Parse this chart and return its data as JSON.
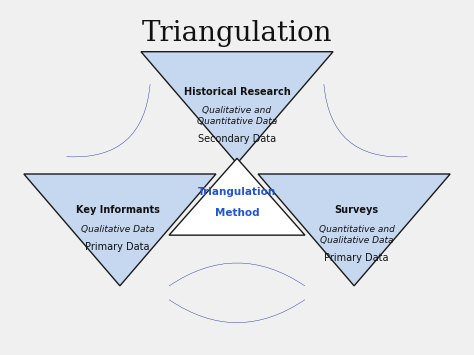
{
  "title": "Triangulation",
  "title_fontsize": 20,
  "background_color": "#f0f0f0",
  "triangle_fill": "#c5d8f0",
  "triangle_edge": "#1a1a1a",
  "center_fill": "#ffffff",
  "arrow_color": "#1a2f8a",
  "center_label_line1": "Triangulation",
  "center_label_line2": "Method",
  "center_label_color": "#2255cc",
  "top_label_bold": "Historical Research",
  "top_label_italic": "Qualitative and\nQuantitative Data",
  "top_label_plain": "Secondary Data",
  "bl_label_bold": "Key Informants",
  "bl_label_italic": "Qualitative Data",
  "bl_label_plain": "Primary Data",
  "br_label_bold": "Surveys",
  "br_label_italic": "Quantitative and\nQualitative Data",
  "br_label_plain": "Primary Data",
  "text_color": "#111111",
  "text_fontsize": 7,
  "text_italic_fontsize": 6.5
}
